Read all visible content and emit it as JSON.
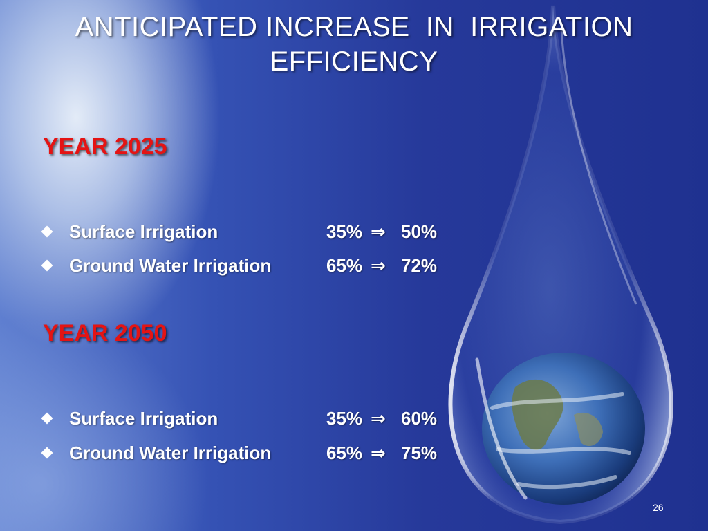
{
  "slide": {
    "title_lines": [
      "ANTICIPATED INCREASE  IN  IRRIGATION",
      "EFFICIENCY"
    ],
    "sections": [
      {
        "heading": "YEAR 2025",
        "items": [
          {
            "label": "Surface Irrigation",
            "from": "35%",
            "arrow": "⇒",
            "to": "50%"
          },
          {
            "label": "Ground Water Irrigation",
            "from": "65%",
            "arrow": "⇒",
            "to": "72%"
          }
        ]
      },
      {
        "heading": "YEAR 2050",
        "items": [
          {
            "label": "Surface Irrigation",
            "from": "35%",
            "arrow": "⇒",
            "to": "60%"
          },
          {
            "label": "Ground Water Irrigation",
            "from": "65%",
            "arrow": "⇒",
            "to": "75%"
          }
        ]
      }
    ],
    "page_number": "26"
  },
  "icons": {
    "bullet": "diamond-bullet-icon",
    "illustration": "water-drop-earth-icon"
  },
  "colors": {
    "heading": "#e41414",
    "text": "#ffffff",
    "background": "#2a3f9a"
  }
}
